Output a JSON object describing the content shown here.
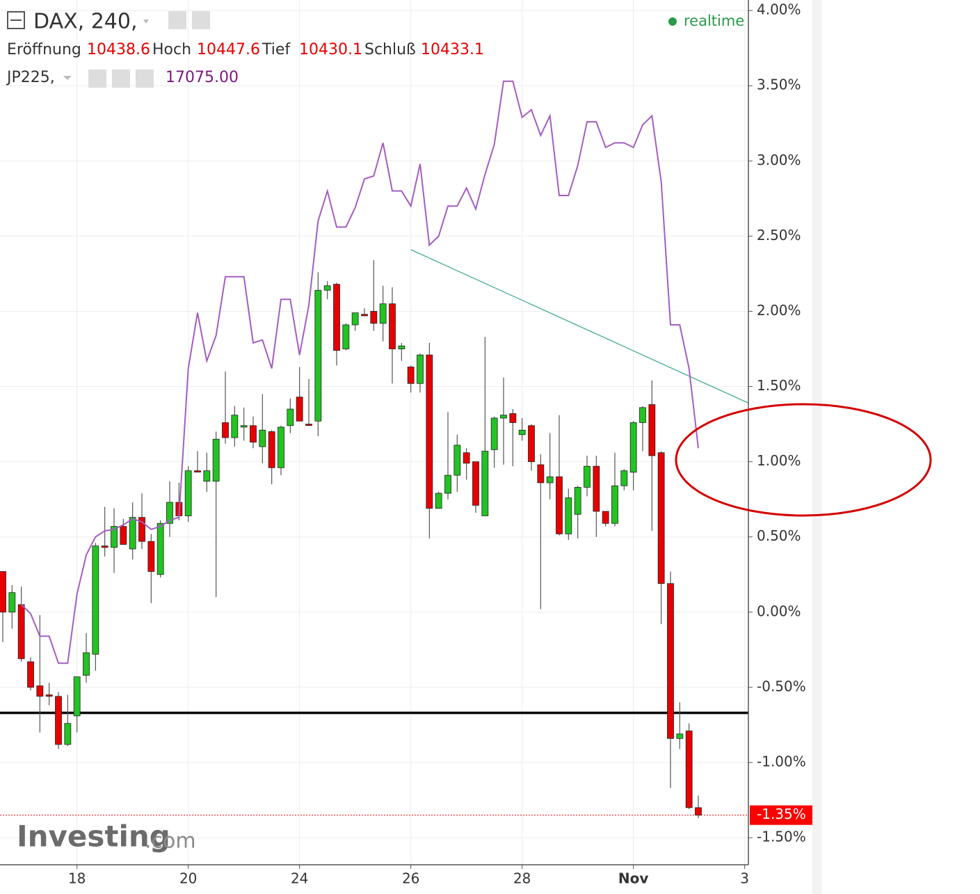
{
  "chart_data": {
    "type": "candlestick",
    "header": {
      "symbol": "DAX, 240,",
      "open_label": "Eröffnung",
      "open": "10438.6",
      "high_label": "Hoch",
      "high": "10447.6",
      "low_label": "Tief",
      "low": "10430.1",
      "close_label": "Schluß",
      "close": "10433.1",
      "compare_symbol": "JP225,",
      "compare_value": "17075.00",
      "status": "realtime"
    },
    "logo": {
      "name": "Investing",
      "suffix": ".com"
    },
    "up_color": "#22c322",
    "down_color": "#e60000",
    "x": [
      0,
      1,
      2,
      3,
      4,
      5,
      6,
      7,
      8,
      9,
      10,
      11,
      12,
      13,
      14,
      15,
      16,
      17,
      18,
      19,
      20,
      21,
      22,
      23,
      24,
      25,
      26,
      27,
      28,
      29,
      30,
      31,
      32,
      33,
      34,
      35,
      36,
      37,
      38,
      39,
      40,
      41,
      42,
      43,
      44,
      45,
      46,
      47,
      48,
      49,
      50,
      51,
      52,
      53,
      54,
      55,
      56,
      57,
      58,
      59,
      60,
      61,
      62,
      63,
      64,
      65,
      66,
      67,
      68,
      69,
      70,
      71,
      72,
      73,
      74,
      75
    ],
    "open": [
      0.27,
      0,
      0.05,
      -0.33,
      -0.49,
      -0.55,
      -0.56,
      -0.88,
      -0.69,
      -0.42,
      -0.28,
      0.44,
      0.43,
      0.57,
      0.42,
      0.63,
      0.47,
      0.25,
      0.59,
      0.73,
      0.64,
      0.94,
      0.87,
      0.87,
      1.26,
      1.16,
      1.23,
      1.24,
      1.1,
      1.2,
      0.96,
      1.24,
      1.43,
      1.25,
      1.27,
      2.14,
      2.18,
      1.75,
      1.91,
      1.98,
      2.0,
      1.92,
      2.05,
      1.75,
      1.63,
      1.52,
      1.71,
      0.69,
      0.79,
      0.91,
      1.06,
      1.0,
      0.64,
      1.08,
      1.29,
      1.32,
      1.18,
      1.24,
      0.98,
      0.86,
      0.9,
      0.52,
      0.65,
      0.83,
      0.97,
      0.67,
      0.59,
      0.84,
      0.93,
      1.26,
      1.38,
      1.06,
      0.19,
      -0.84,
      -0.79,
      -1.3
    ],
    "high": [
      0.27,
      0.18,
      0.17,
      -0.3,
      -0.02,
      -0.47,
      -0.53,
      -0.55,
      -0.43,
      -0.14,
      0.46,
      0.7,
      0.69,
      0.62,
      0.73,
      0.79,
      0.52,
      0.61,
      0.87,
      0.86,
      0.97,
      1.07,
      1.06,
      1.2,
      1.6,
      1.37,
      1.36,
      1.3,
      1.45,
      1.21,
      1.24,
      1.42,
      1.63,
      1.55,
      2.26,
      2.2,
      2.19,
      1.92,
      1.99,
      2.02,
      2.34,
      2.17,
      2.16,
      1.79,
      1.64,
      1.72,
      1.79,
      0.8,
      1.33,
      1.18,
      1.09,
      1.0,
      1.83,
      1.3,
      1.56,
      1.35,
      1.29,
      1.25,
      1.05,
      1.19,
      1.31,
      0.82,
      0.84,
      1.04,
      1.04,
      0.67,
      1.06,
      0.95,
      1.27,
      1.37,
      1.54,
      1.07,
      0.27,
      -0.6,
      -0.74,
      -1.22
    ],
    "low": [
      -0.2,
      -0.11,
      -0.33,
      -0.52,
      -0.8,
      -0.62,
      -0.91,
      -0.89,
      -0.8,
      -0.47,
      -0.39,
      0.37,
      0.26,
      0.45,
      0.35,
      0.42,
      0.06,
      0.23,
      0.5,
      0.61,
      0.6,
      0.94,
      0.8,
      0.1,
      1.12,
      1.1,
      1.14,
      1.09,
      0.99,
      0.85,
      0.91,
      1.19,
      1.27,
      1.24,
      1.17,
      2.08,
      1.64,
      1.74,
      1.87,
      1.97,
      1.87,
      1.8,
      1.52,
      1.67,
      1.46,
      1.46,
      0.49,
      0.69,
      0.75,
      0.8,
      0.88,
      0.66,
      0.64,
      0.96,
      0.98,
      0.97,
      1.14,
      0.94,
      0.02,
      0.75,
      0.51,
      0.48,
      0.49,
      0.77,
      0.5,
      0.57,
      0.57,
      0.81,
      0.81,
      1.07,
      0.54,
      -0.08,
      -1.17,
      -0.91,
      -1.31,
      -1.37
    ],
    "close": [
      0,
      0.13,
      -0.31,
      -0.5,
      -0.56,
      -0.56,
      -0.88,
      -0.74,
      -0.43,
      -0.27,
      0.44,
      0.43,
      0.57,
      0.45,
      0.63,
      0.47,
      0.27,
      0.59,
      0.73,
      0.64,
      0.94,
      0.94,
      0.94,
      1.15,
      1.16,
      1.31,
      1.24,
      1.13,
      1.21,
      0.96,
      1.23,
      1.35,
      1.27,
      1.25,
      2.14,
      2.17,
      1.74,
      1.91,
      1.99,
      1.97,
      1.92,
      2.05,
      1.75,
      1.77,
      1.52,
      1.71,
      0.69,
      0.79,
      0.91,
      1.11,
      0.99,
      0.71,
      1.07,
      1.29,
      1.31,
      1.26,
      1.21,
      1.0,
      0.86,
      0.9,
      0.52,
      0.76,
      0.83,
      0.97,
      0.67,
      0.59,
      0.84,
      0.94,
      1.26,
      1.36,
      1.04,
      0.19,
      -0.84,
      -0.81,
      -1.3,
      -1.35
    ],
    "lines": [
      {
        "color": "#a35dbf",
        "x": [
          2,
          3,
          4,
          5,
          6,
          7,
          8,
          9,
          10,
          11,
          12,
          13,
          14,
          15,
          16,
          17,
          18,
          19,
          20,
          21,
          22,
          23,
          24,
          25,
          26,
          27,
          28,
          29,
          30,
          31,
          32,
          33,
          34,
          35,
          36,
          37,
          38,
          39,
          40,
          41,
          42,
          43,
          44,
          45,
          46,
          47,
          48,
          49,
          50,
          51,
          52,
          53,
          54,
          55,
          56,
          57,
          58,
          59,
          60,
          61,
          62,
          63,
          64,
          65,
          66,
          67,
          68,
          69,
          70,
          71,
          72,
          73,
          74,
          75
        ],
        "values": [
          0.05,
          -0.01,
          -0.16,
          -0.16,
          -0.34,
          -0.34,
          0.12,
          0.38,
          0.5,
          0.54,
          0.55,
          0.58,
          0.62,
          0.6,
          0.55,
          0.57,
          0.61,
          0.63,
          1.62,
          1.99,
          1.67,
          1.84,
          2.23,
          2.23,
          2.23,
          1.79,
          1.81,
          1.62,
          2.08,
          2.08,
          1.71,
          2.04,
          2.6,
          2.8,
          2.56,
          2.56,
          2.69,
          2.88,
          2.9,
          3.12,
          2.8,
          2.8,
          2.7,
          2.98,
          2.44,
          2.5,
          2.7,
          2.7,
          2.82,
          2.68,
          2.91,
          3.11,
          3.53,
          3.53,
          3.29,
          3.34,
          3.17,
          3.3,
          2.77,
          2.77,
          2.97,
          3.26,
          3.26,
          3.09,
          3.12,
          3.12,
          3.09,
          3.24,
          3.3,
          2.86,
          1.91,
          1.91,
          1.62,
          1.09
        ]
      }
    ],
    "trend_lines": [
      {
        "color": "#3aa58c",
        "x": [
          44,
          80.4
        ],
        "values": [
          2.41,
          1.39
        ]
      }
    ],
    "reference_lines": [
      {
        "color": "#000000",
        "value": -0.67
      }
    ],
    "last_value": {
      "value": -1.35,
      "label": "-1.35%",
      "color": "#ff0000"
    },
    "xlim": [
      -0.3,
      80.4
    ],
    "ylim": [
      -1.68,
      4.07
    ],
    "xticks": [
      {
        "value": 8,
        "label": "18"
      },
      {
        "value": 20,
        "label": "20"
      },
      {
        "value": 32,
        "label": "24"
      },
      {
        "value": 44,
        "label": "26"
      },
      {
        "value": 56,
        "label": "28"
      },
      {
        "value": 68,
        "label": "Nov"
      },
      {
        "value": 80,
        "label": "3"
      }
    ],
    "yticks": [
      {
        "value": 4,
        "label": "4.00%"
      },
      {
        "value": 3.5,
        "label": "3.50%"
      },
      {
        "value": 3,
        "label": "3.00%"
      },
      {
        "value": 2.5,
        "label": "2.50%"
      },
      {
        "value": 2,
        "label": "2.00%"
      },
      {
        "value": 1.5,
        "label": "1.50%"
      },
      {
        "value": 1,
        "label": "1.00%"
      },
      {
        "value": 0.5,
        "label": "0.50%"
      },
      {
        "value": 0,
        "label": "0.00%"
      },
      {
        "value": -0.5,
        "label": "-0.50%"
      },
      {
        "value": -1,
        "label": "-1.00%"
      },
      {
        "value": -1.5,
        "label": "-1.50%"
      }
    ],
    "grid": true
  }
}
